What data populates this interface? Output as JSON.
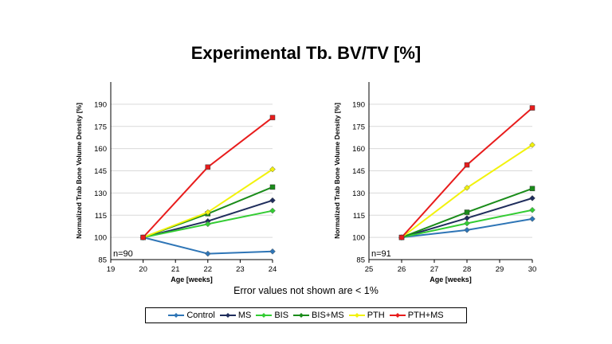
{
  "title": "Experimental Tb. BV/TV [%]",
  "note": "Error values not shown are < 1%",
  "colors": {
    "Control": "#2e75b6",
    "MS": "#1f2d5c",
    "BIS": "#33cc33",
    "BIS+MS": "#1a8c1a",
    "PTH": "#f2f20d",
    "PTH+MS": "#e81c1c"
  },
  "legend": [
    "Control",
    "MS",
    "BIS",
    "BIS+MS",
    "PTH",
    "PTH+MS"
  ],
  "chart_data": [
    {
      "type": "line",
      "annotation": "n=90",
      "xlabel": "Age [weeks]",
      "ylabel": "Normalized Trab Bone Volume Density [%]",
      "xlim": [
        19,
        24
      ],
      "ylim": [
        85,
        205
      ],
      "xticks": [
        19,
        20,
        21,
        22,
        23,
        24
      ],
      "yticks": [
        85,
        100,
        115,
        130,
        145,
        160,
        175,
        190
      ],
      "x": [
        20,
        22,
        24
      ],
      "series": [
        {
          "name": "Control",
          "values": [
            100,
            89,
            90.5
          ]
        },
        {
          "name": "MS",
          "values": [
            100,
            111,
            125
          ]
        },
        {
          "name": "BIS",
          "values": [
            100,
            109,
            118
          ]
        },
        {
          "name": "BIS+MS",
          "values": [
            100,
            116,
            134
          ]
        },
        {
          "name": "PTH",
          "values": [
            100,
            117,
            146
          ]
        },
        {
          "name": "PTH+MS",
          "values": [
            100,
            147.5,
            181
          ]
        }
      ]
    },
    {
      "type": "line",
      "annotation": "n=91",
      "xlabel": "Age [weeks]",
      "ylabel": "Normalized Trab Bone Volume Density [%]",
      "xlim": [
        25,
        30
      ],
      "ylim": [
        85,
        205
      ],
      "xticks": [
        25,
        26,
        27,
        28,
        29,
        30
      ],
      "yticks": [
        85,
        100,
        115,
        130,
        145,
        160,
        175,
        190
      ],
      "x": [
        26,
        28,
        30
      ],
      "series": [
        {
          "name": "Control",
          "values": [
            100,
            105,
            112.5
          ]
        },
        {
          "name": "MS",
          "values": [
            100,
            113,
            126.5
          ]
        },
        {
          "name": "BIS",
          "values": [
            100,
            109.5,
            118.5
          ]
        },
        {
          "name": "BIS+MS",
          "values": [
            100,
            117,
            133
          ]
        },
        {
          "name": "PTH",
          "values": [
            100,
            133.5,
            162.5
          ]
        },
        {
          "name": "PTH+MS",
          "values": [
            100,
            149,
            187.5
          ]
        }
      ]
    }
  ]
}
